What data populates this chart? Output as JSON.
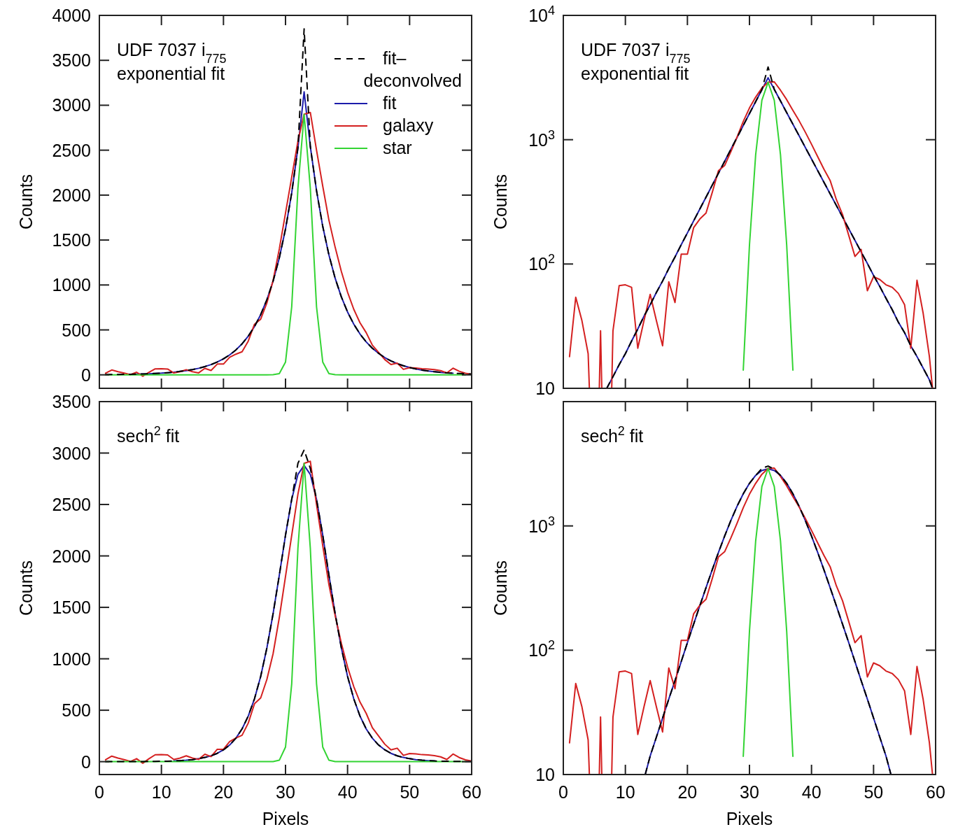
{
  "chart_data": [
    {
      "type": "line",
      "x": [
        1,
        2,
        3,
        4,
        5,
        6,
        7,
        8,
        9,
        10,
        11,
        12,
        13,
        14,
        15,
        16,
        17,
        18,
        19,
        20,
        21,
        22,
        23,
        24,
        25,
        26,
        27,
        28,
        29,
        30,
        31,
        32,
        33,
        34,
        35,
        36,
        37,
        38,
        39,
        40,
        41,
        42,
        43,
        44,
        45,
        46,
        47,
        48,
        49,
        50,
        51,
        52,
        53,
        54,
        55,
        56,
        57,
        58,
        59,
        60
      ],
      "xlim": [
        0,
        60
      ],
      "xticks": [
        0,
        10,
        20,
        30,
        40,
        50,
        60
      ],
      "ylim": [
        -150,
        4000
      ],
      "yticks": [
        0,
        500,
        1000,
        1500,
        2000,
        2500,
        3000,
        3500,
        4000
      ],
      "ylabel": "Counts",
      "tick_labels": "y",
      "legend": "top right",
      "annotations": [
        "UDF 7037 i$_{775}$",
        "exponential fit"
      ],
      "series": [
        {
          "name": "fit–deconvolved",
          "color": "#000000",
          "line_style": "dashed",
          "values": [
            3,
            3,
            4,
            5,
            6,
            8,
            10,
            12,
            16,
            19,
            24,
            30,
            38,
            47,
            59,
            73,
            92,
            114,
            143,
            178,
            222,
            277,
            345,
            431,
            537,
            670,
            836,
            1043,
            1301,
            1623,
            2025,
            2525,
            3850,
            2540,
            2049,
            1652,
            1333,
            1075,
            867,
            699,
            564,
            455,
            367,
            296,
            239,
            192,
            155,
            125,
            101,
            81,
            66,
            53,
            43,
            34,
            28,
            22,
            18,
            15,
            12,
            9
          ]
        },
        {
          "name": "fit",
          "color": "#1c1caa",
          "x": [
            6,
            7,
            8,
            9,
            10,
            11,
            12,
            13,
            14,
            15,
            16,
            17,
            18,
            19,
            20,
            21,
            22,
            23,
            24,
            25,
            26,
            27,
            28,
            29,
            30,
            31,
            32,
            33,
            34,
            35,
            36,
            37,
            38,
            39,
            40,
            41,
            42,
            43,
            44,
            45,
            46,
            47,
            48,
            49,
            50,
            51,
            52,
            53,
            54,
            55,
            56,
            57
          ],
          "values": [
            8,
            10,
            12,
            16,
            19,
            24,
            30,
            38,
            47,
            59,
            73,
            92,
            114,
            143,
            178,
            222,
            277,
            345,
            431,
            537,
            670,
            836,
            1043,
            1301,
            1623,
            2025,
            2525,
            3150,
            2540,
            2049,
            1652,
            1333,
            1075,
            867,
            699,
            564,
            455,
            367,
            296,
            239,
            192,
            155,
            125,
            101,
            81,
            66,
            53,
            43,
            34,
            28,
            22,
            18
          ]
        },
        {
          "name": "galaxy",
          "color": "#d42020",
          "values": [
            18,
            54,
            35,
            19,
            2,
            29,
            -15,
            29,
            67,
            68,
            65,
            21,
            35,
            57,
            35,
            22,
            72,
            49,
            120,
            120,
            196,
            230,
            257,
            376,
            563,
            620,
            800,
            1050,
            1400,
            1800,
            2200,
            2600,
            2900,
            2920,
            2500,
            2100,
            1720,
            1420,
            1150,
            920,
            730,
            580,
            470,
            330,
            250,
            170,
            115,
            131,
            61,
            79,
            75,
            68,
            65,
            58,
            47,
            21,
            74,
            40,
            18,
            5
          ]
        },
        {
          "name": "star",
          "color": "#33d433",
          "values": [
            0,
            0,
            0,
            0,
            0,
            0,
            0,
            0,
            0,
            0,
            0,
            0,
            0,
            0,
            0,
            0,
            0,
            0,
            0,
            0,
            0,
            0,
            0,
            0,
            0,
            0,
            0,
            1,
            14,
            142,
            757,
            2074,
            2900,
            2074,
            757,
            142,
            14,
            1,
            0,
            0,
            0,
            0,
            0,
            0,
            0,
            0,
            0,
            0,
            0,
            0,
            0,
            0,
            0,
            0,
            0,
            0,
            0,
            0,
            0,
            null
          ]
        }
      ]
    },
    {
      "type": "line",
      "xlim": [
        0,
        60
      ],
      "xticks": [
        0,
        10,
        20,
        30,
        40,
        50,
        60
      ],
      "ylim": [
        10,
        10000
      ],
      "log": "y",
      "yticks": [
        10,
        {
          "value": 100,
          "label": "10$^{2}$"
        },
        {
          "value": 1000,
          "label": "10$^{3}$"
        },
        {
          "value": 10000,
          "label": "10$^{4}$"
        }
      ],
      "ylabel": "Counts",
      "tick_labels": "y",
      "annotations": [
        "UDF 7037 i$_{775}$",
        "exponential fit"
      ],
      "series": [
        {
          "color": "#000000",
          "line_style": "dashed",
          "x": [
            7,
            8,
            9,
            10,
            11,
            12,
            13,
            14,
            15,
            16,
            17,
            18,
            19,
            20,
            21,
            22,
            23,
            24,
            25,
            26,
            27,
            28,
            29,
            30,
            31,
            32,
            33,
            34,
            35,
            36,
            37,
            38,
            39,
            40,
            41,
            42,
            43,
            44,
            45,
            46,
            47,
            48,
            49,
            50,
            51,
            52,
            53,
            54,
            55,
            56,
            57,
            58,
            59,
            59.5
          ],
          "values": [
            10,
            12.4,
            15.5,
            19,
            24,
            30,
            38,
            47,
            59,
            73,
            92,
            114,
            143,
            178,
            222,
            277,
            345,
            431,
            537,
            670,
            836,
            1043,
            1301,
            1623,
            2025,
            2525,
            3850,
            2540,
            2049,
            1652,
            1333,
            1075,
            867,
            699,
            564,
            455,
            367,
            296,
            239,
            192,
            155,
            125,
            101,
            81,
            66,
            53,
            43,
            34,
            28,
            22,
            18,
            14.5,
            11.7,
            10
          ]
        },
        {
          "color": "#1c1caa",
          "x": [
            7,
            8,
            9,
            10,
            11,
            12,
            13,
            14,
            15,
            16,
            17,
            18,
            19,
            20,
            21,
            22,
            23,
            24,
            25,
            26,
            27,
            28,
            29,
            30,
            31,
            32,
            33,
            34,
            35,
            36,
            37,
            38,
            39,
            40,
            41,
            42,
            43,
            44,
            45,
            46,
            47,
            48,
            49,
            50,
            51,
            52,
            53,
            54,
            55,
            56,
            57,
            58,
            59,
            59.5
          ],
          "values": [
            10,
            12.4,
            15.5,
            19,
            24,
            30,
            38,
            47,
            59,
            73,
            92,
            114,
            143,
            178,
            222,
            277,
            345,
            431,
            537,
            670,
            836,
            1043,
            1301,
            1623,
            2025,
            2525,
            3150,
            2540,
            2049,
            1652,
            1333,
            1075,
            867,
            699,
            564,
            455,
            367,
            296,
            239,
            192,
            155,
            125,
            101,
            81,
            66,
            53,
            43,
            34,
            28,
            22,
            18,
            14.5,
            11.7,
            10
          ]
        },
        {
          "color": "#d42020",
          "x": [
            1,
            2,
            3,
            4,
            4.2,
            5.8,
            6,
            6.2,
            7.8,
            8,
            9,
            10,
            11,
            12,
            13,
            14,
            15,
            16,
            17,
            18,
            19,
            20,
            21,
            22,
            23,
            24,
            25,
            26,
            27,
            28,
            29,
            30,
            31,
            32,
            33,
            34,
            35,
            36,
            37,
            38,
            39,
            40,
            41,
            42,
            43,
            44,
            45,
            46,
            47,
            48,
            49,
            50,
            51,
            52,
            53,
            54,
            55,
            56,
            57,
            58,
            59,
            59.5
          ],
          "values": [
            18,
            54,
            35,
            19,
            10,
            10,
            29,
            10,
            10,
            29,
            67,
            68,
            65,
            21,
            35,
            57,
            35,
            22,
            72,
            49,
            120,
            120,
            196,
            230,
            257,
            376,
            563,
            620,
            800,
            1050,
            1400,
            1800,
            2200,
            2600,
            2900,
            2920,
            2500,
            2100,
            1720,
            1420,
            1150,
            920,
            730,
            580,
            470,
            330,
            250,
            170,
            115,
            131,
            61,
            79,
            75,
            68,
            65,
            58,
            47,
            21,
            74,
            40,
            18,
            10
          ]
        },
        {
          "color": "#33d433",
          "x": [
            29,
            30,
            31,
            32,
            33,
            34,
            35,
            36,
            37
          ],
          "values": [
            14,
            142,
            757,
            2074,
            2900,
            2074,
            757,
            142,
            14
          ]
        }
      ]
    },
    {
      "type": "line",
      "x": [
        1,
        2,
        3,
        4,
        5,
        6,
        7,
        8,
        9,
        10,
        11,
        12,
        13,
        14,
        15,
        16,
        17,
        18,
        19,
        20,
        21,
        22,
        23,
        24,
        25,
        26,
        27,
        28,
        29,
        30,
        31,
        32,
        33,
        34,
        35,
        36,
        37,
        38,
        39,
        40,
        41,
        42,
        43,
        44,
        45,
        46,
        47,
        48,
        49,
        50,
        51,
        52,
        53,
        54,
        55,
        56,
        57,
        58,
        59,
        60
      ],
      "xlim": [
        0,
        60
      ],
      "xticks": [
        0,
        10,
        20,
        30,
        40,
        50,
        60
      ],
      "ylim": [
        -125,
        3500
      ],
      "yticks": [
        0,
        500,
        1000,
        1500,
        2000,
        2500,
        3000,
        3500
      ],
      "xlabel": "Pixels",
      "ylabel": "Counts",
      "annotations": [
        "sech$^{2}$ fit"
      ],
      "series": [
        {
          "color": "#000000",
          "line_style": "dashed",
          "values": [
            0,
            0,
            0,
            0,
            1,
            1,
            1,
            2,
            3,
            4,
            5,
            7,
            10,
            14,
            20,
            29,
            41,
            57,
            81,
            115,
            162,
            228,
            319,
            444,
            611,
            829,
            1106,
            1439,
            1812,
            2202,
            2550,
            2900,
            3030,
            2850,
            2550,
            2202,
            1812,
            1439,
            1106,
            829,
            611,
            444,
            319,
            228,
            162,
            115,
            81,
            57,
            41,
            29,
            20,
            14,
            10,
            7,
            5,
            4,
            3,
            2,
            1,
            1
          ]
        },
        {
          "color": "#1c1caa",
          "x": [
            12,
            13,
            14,
            15,
            16,
            17,
            18,
            19,
            20,
            21,
            22,
            23,
            24,
            25,
            26,
            27,
            28,
            29,
            30,
            31,
            32,
            33,
            34,
            35,
            36,
            37,
            38,
            39,
            40,
            41,
            42,
            43,
            44,
            45,
            46,
            47,
            48,
            49,
            50,
            51,
            52,
            53,
            54
          ],
          "values": [
            7,
            10,
            14,
            20,
            29,
            41,
            57,
            81,
            115,
            162,
            228,
            319,
            444,
            611,
            829,
            1106,
            1439,
            1812,
            2202,
            2550,
            2792,
            2880,
            2792,
            2550,
            2202,
            1812,
            1439,
            1106,
            829,
            611,
            444,
            319,
            228,
            162,
            115,
            81,
            57,
            41,
            29,
            20,
            14,
            10,
            7
          ]
        },
        {
          "color": "#d42020",
          "values": [
            18,
            54,
            35,
            19,
            2,
            29,
            -15,
            29,
            67,
            68,
            65,
            21,
            35,
            57,
            35,
            22,
            72,
            49,
            120,
            120,
            196,
            230,
            257,
            376,
            563,
            620,
            800,
            1050,
            1400,
            1800,
            2200,
            2600,
            2900,
            2920,
            2500,
            2100,
            1720,
            1420,
            1150,
            920,
            730,
            580,
            470,
            330,
            250,
            170,
            115,
            131,
            61,
            79,
            75,
            68,
            65,
            58,
            47,
            21,
            74,
            40,
            18,
            5
          ]
        },
        {
          "color": "#33d433",
          "values": [
            0,
            0,
            0,
            0,
            0,
            0,
            0,
            0,
            0,
            0,
            0,
            0,
            0,
            0,
            0,
            0,
            0,
            0,
            0,
            0,
            0,
            0,
            0,
            0,
            0,
            0,
            0,
            1,
            14,
            142,
            757,
            2074,
            2900,
            2074,
            757,
            142,
            14,
            1,
            0,
            0,
            0,
            0,
            0,
            0,
            0,
            0,
            0,
            0,
            0,
            0,
            0,
            0,
            0,
            0,
            0,
            0,
            0,
            0,
            0,
            null
          ]
        }
      ]
    },
    {
      "type": "line",
      "xlim": [
        0,
        60
      ],
      "xticks": [
        0,
        10,
        20,
        30,
        40,
        50,
        60
      ],
      "ylim": [
        10,
        10000
      ],
      "log": "y",
      "yticks": [
        10,
        {
          "value": 100,
          "label": "10$^{2}$"
        },
        {
          "value": 1000,
          "label": "10$^{3}$"
        },
        {
          "value": 10000,
          "label": null
        }
      ],
      "xlabel": "Pixels",
      "ylabel": "Counts",
      "annotations": [
        "sech$^{2}$ fit"
      ],
      "series": [
        {
          "color": "#000000",
          "line_style": "dashed",
          "x": [
            13.2,
            14,
            15,
            16,
            17,
            18,
            19,
            20,
            21,
            22,
            23,
            24,
            25,
            26,
            27,
            28,
            29,
            30,
            31,
            32,
            33,
            34,
            35,
            36,
            37,
            38,
            39,
            40,
            41,
            42,
            43,
            44,
            45,
            46,
            47,
            48,
            49,
            50,
            51,
            52,
            52.8
          ],
          "values": [
            10,
            14.1,
            20,
            28.5,
            40.5,
            57,
            81,
            115,
            162,
            228,
            319,
            444,
            611,
            829,
            1106,
            1439,
            1812,
            2202,
            2550,
            2900,
            3030,
            2850,
            2550,
            2202,
            1812,
            1439,
            1106,
            829,
            611,
            444,
            319,
            228,
            162,
            115,
            81,
            57,
            40.5,
            28.5,
            20,
            14.1,
            10
          ]
        },
        {
          "color": "#1c1caa",
          "x": [
            13.2,
            14,
            15,
            16,
            17,
            18,
            19,
            20,
            21,
            22,
            23,
            24,
            25,
            26,
            27,
            28,
            29,
            30,
            31,
            32,
            33,
            34,
            35,
            36,
            37,
            38,
            39,
            40,
            41,
            42,
            43,
            44,
            45,
            46,
            47,
            48,
            49,
            50,
            51,
            52,
            52.8
          ],
          "values": [
            10,
            14.1,
            20,
            28.5,
            40.5,
            57,
            81,
            115,
            162,
            228,
            319,
            444,
            611,
            829,
            1106,
            1439,
            1812,
            2202,
            2550,
            2792,
            2880,
            2792,
            2550,
            2202,
            1812,
            1439,
            1106,
            829,
            611,
            444,
            319,
            228,
            162,
            115,
            81,
            57,
            40.5,
            28.5,
            20,
            14.1,
            10
          ]
        },
        {
          "color": "#d42020",
          "x": [
            1,
            2,
            3,
            4,
            4.2,
            5.8,
            6,
            6.2,
            7.8,
            8,
            9,
            10,
            11,
            12,
            13,
            14,
            15,
            16,
            17,
            18,
            19,
            20,
            21,
            22,
            23,
            24,
            25,
            26,
            27,
            28,
            29,
            30,
            31,
            32,
            33,
            34,
            35,
            36,
            37,
            38,
            39,
            40,
            41,
            42,
            43,
            44,
            45,
            46,
            47,
            48,
            49,
            50,
            51,
            52,
            53,
            54,
            55,
            56,
            57,
            58,
            59,
            59.5
          ],
          "values": [
            18,
            54,
            35,
            19,
            10,
            10,
            29,
            10,
            10,
            29,
            67,
            68,
            65,
            21,
            35,
            57,
            35,
            22,
            72,
            49,
            120,
            120,
            196,
            230,
            257,
            376,
            563,
            620,
            800,
            1050,
            1400,
            1800,
            2200,
            2600,
            2900,
            2920,
            2500,
            2100,
            1720,
            1420,
            1150,
            920,
            730,
            580,
            470,
            330,
            250,
            170,
            115,
            131,
            61,
            79,
            75,
            68,
            65,
            58,
            47,
            21,
            74,
            40,
            18,
            10
          ]
        },
        {
          "color": "#33d433",
          "x": [
            29,
            30,
            31,
            32,
            33,
            34,
            35,
            36,
            37
          ],
          "values": [
            14,
            142,
            757,
            2074,
            2900,
            2074,
            757,
            142,
            14
          ]
        }
      ]
    }
  ]
}
